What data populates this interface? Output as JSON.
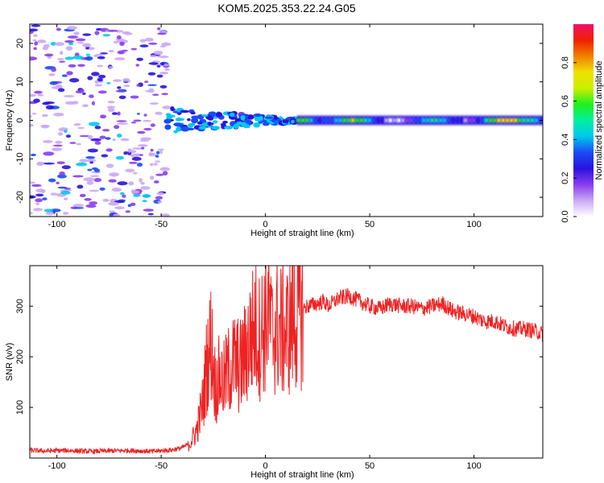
{
  "title": "KOM5.2025.353.22.24.G05",
  "chart_data": [
    {
      "type": "heatmap",
      "name": "spectrogram",
      "xlabel": "Height of straight line (km)",
      "ylabel": "Frequency (Hz)",
      "xlim": [
        -113,
        133
      ],
      "ylim": [
        -25,
        25
      ],
      "xticks": [
        -100,
        -50,
        0,
        50,
        100
      ],
      "xtick_labels": [
        "-100",
        "-50",
        "0",
        "50",
        "100"
      ],
      "yticks": [
        -20,
        -10,
        0,
        10,
        20
      ],
      "ytick_labels": [
        "-20",
        "-10",
        "0",
        "10",
        "20"
      ],
      "noise_region_km": [
        -113,
        -47
      ],
      "transition_region_km": [
        -47,
        15
      ],
      "stable_signal_km": [
        15,
        133
      ],
      "signal_frequency_hz": 0,
      "colorbar": {
        "label": "Normalized spectral amplitude",
        "range": [
          0.0,
          1.0
        ],
        "ticks": [
          0.0,
          0.2,
          0.4,
          0.6,
          0.8
        ],
        "tick_labels": [
          "0.0",
          "0.2",
          "0.4",
          "0.6",
          "0.8"
        ],
        "colormap": [
          "#ffffff",
          "#c9a8f5",
          "#8a3cf0",
          "#2a12e0",
          "#1a4cf5",
          "#00c8f0",
          "#00f0a0",
          "#20f020",
          "#c8f000",
          "#f0e000",
          "#f08000",
          "#f02000",
          "#f0106a"
        ]
      }
    },
    {
      "type": "line",
      "name": "snr",
      "xlabel": "Height of straight line (km)",
      "ylabel": "SNR (v/v)",
      "xlim": [
        -113,
        133
      ],
      "ylim": [
        0,
        380
      ],
      "xticks": [
        -100,
        -50,
        0,
        50,
        100
      ],
      "xtick_labels": [
        "-100",
        "-50",
        "0",
        "50",
        "100"
      ],
      "yticks": [
        100,
        200,
        300
      ],
      "ytick_labels": [
        "100",
        "200",
        "300"
      ],
      "line_color": "#ee2222",
      "series": [
        {
          "name": "SNR",
          "x": [
            -113,
            -105,
            -95,
            -85,
            -75,
            -65,
            -55,
            -45,
            -40,
            -36,
            -33,
            -30,
            -28,
            -26,
            -24,
            -22,
            -20,
            -18,
            -15,
            -12,
            -10,
            -8,
            -5,
            -3,
            0,
            1,
            2,
            3,
            5,
            8,
            10,
            13,
            16,
            20,
            25,
            28,
            30,
            35,
            40,
            45,
            50,
            55,
            60,
            65,
            70,
            75,
            80,
            85,
            90,
            95,
            100,
            105,
            110,
            115,
            120,
            125,
            130,
            133
          ],
          "values": [
            15,
            14,
            15,
            13,
            14,
            15,
            13,
            16,
            20,
            30,
            55,
            110,
            190,
            230,
            140,
            160,
            150,
            170,
            190,
            180,
            200,
            230,
            260,
            240,
            270,
            300,
            280,
            240,
            260,
            250,
            250,
            270,
            290,
            300,
            305,
            310,
            300,
            315,
            320,
            310,
            300,
            295,
            305,
            300,
            300,
            295,
            300,
            305,
            290,
            285,
            280,
            270,
            270,
            260,
            255,
            255,
            250,
            245
          ]
        }
      ]
    }
  ]
}
